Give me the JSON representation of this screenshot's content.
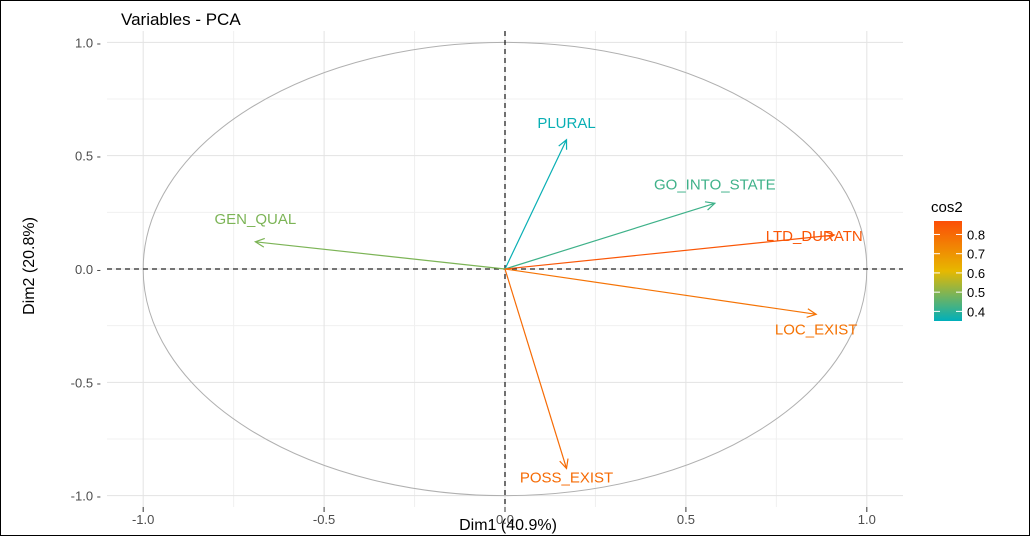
{
  "chart_data": {
    "type": "scatter",
    "title": "Variables - PCA",
    "xlabel": "Dim1 (40.9%)",
    "ylabel": "Dim2 (20.8%)",
    "xlim": [
      -1.1,
      1.1
    ],
    "ylim": [
      -1.05,
      1.05
    ],
    "xticks": [
      -1.0,
      -0.5,
      0.0,
      0.5,
      1.0
    ],
    "xtick_labels": [
      "-1.0",
      "-0.5",
      "0.0",
      "0.5",
      "1.0"
    ],
    "yticks": [
      -1.0,
      -0.5,
      0.0,
      0.5,
      1.0
    ],
    "ytick_labels": [
      "-1.0 -",
      "-0.5 -",
      "0.0 -",
      "0.5 -",
      "1.0 -"
    ],
    "grid": true,
    "unit_circle": true,
    "legend": {
      "title": "cos2",
      "position": "right",
      "range": [
        0.35,
        0.87
      ],
      "ticks": [
        0.4,
        0.5,
        0.6,
        0.7,
        0.8
      ],
      "tick_labels": [
        "0.4",
        "0.5",
        "0.6",
        "0.7",
        "0.8"
      ],
      "gradient": [
        "#00AFBB",
        "#E7B800",
        "#FC4E07"
      ]
    },
    "variables": [
      {
        "name": "PLURAL",
        "x": 0.17,
        "y": 0.57,
        "cos2": 0.36
      },
      {
        "name": "GO_INTO_STATE",
        "x": 0.58,
        "y": 0.29,
        "cos2": 0.42
      },
      {
        "name": "LTD_DURATN",
        "x": 0.91,
        "y": 0.15,
        "cos2": 0.85
      },
      {
        "name": "GEN_QUAL",
        "x": -0.69,
        "y": 0.12,
        "cos2": 0.49
      },
      {
        "name": "LOC_EXIST",
        "x": 0.86,
        "y": -0.2,
        "cos2": 0.78
      },
      {
        "name": "POSS_EXIST",
        "x": 0.17,
        "y": -0.88,
        "cos2": 0.8
      }
    ]
  }
}
